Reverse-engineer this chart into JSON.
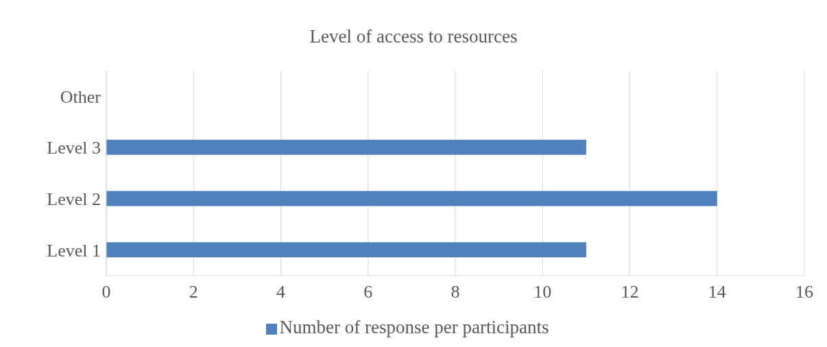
{
  "chart_data": {
    "type": "bar",
    "orientation": "horizontal",
    "title": "Level of access to resources",
    "categories": [
      "Other",
      "Level 3",
      "Level 2",
      "Level 1"
    ],
    "series": [
      {
        "name": "Number of response per participants",
        "color": "#4f81bd",
        "values": [
          0,
          11,
          14,
          11
        ]
      }
    ],
    "xlim": [
      0,
      16
    ],
    "xticks": [
      0,
      2,
      4,
      6,
      8,
      10,
      12,
      14,
      16
    ],
    "grid": "x",
    "legend": "bottom"
  }
}
